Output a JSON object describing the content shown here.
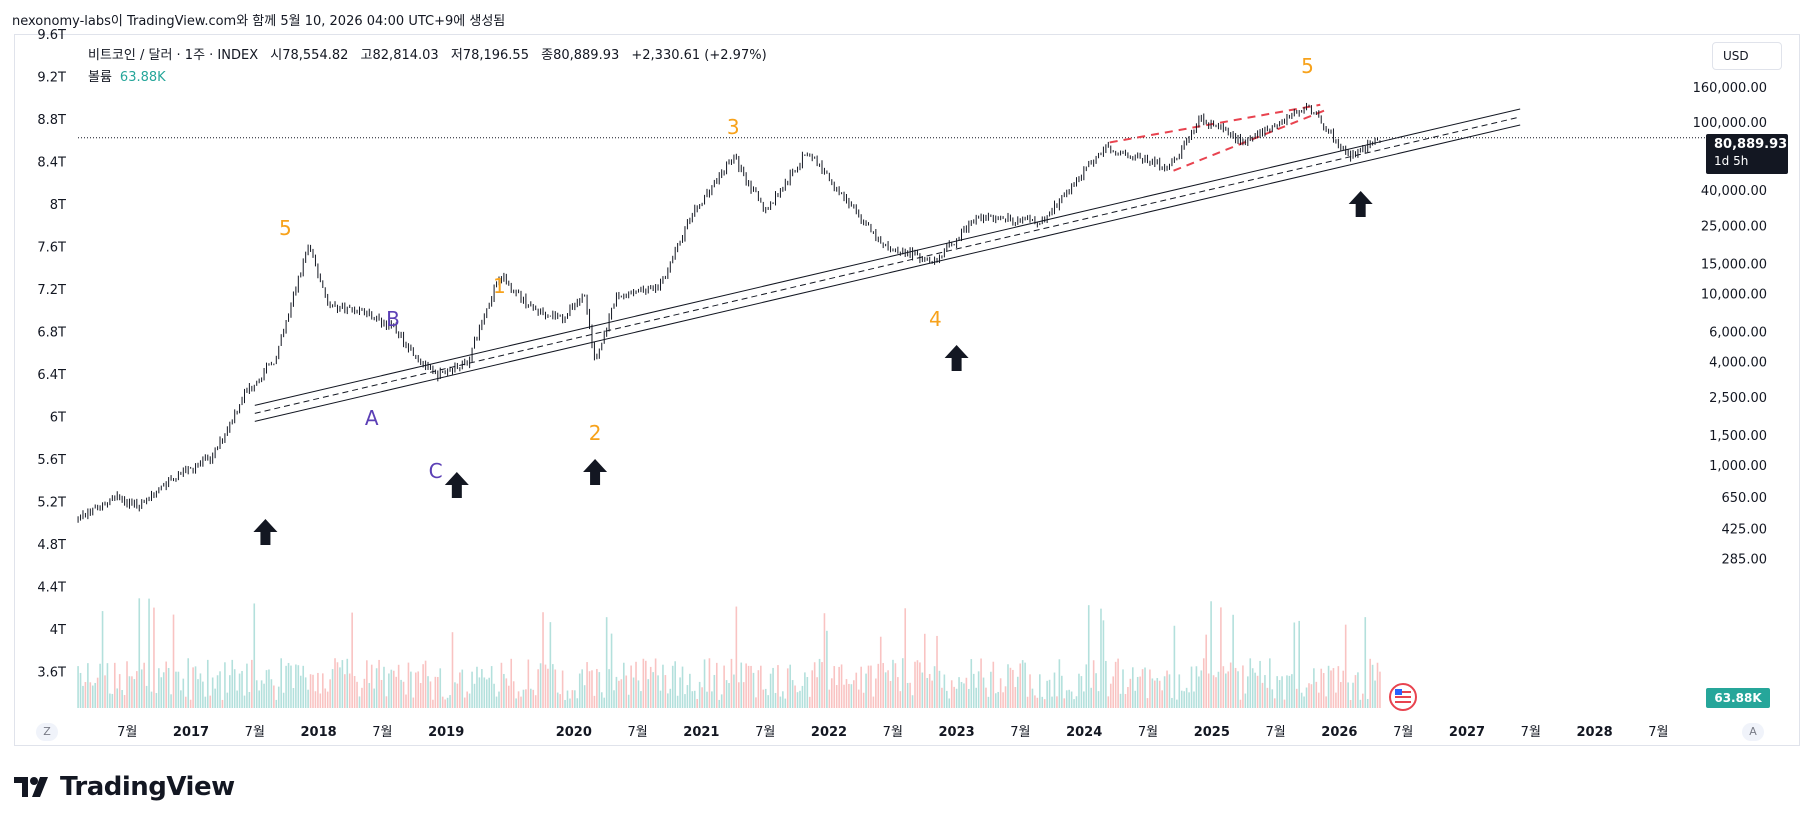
{
  "header": {
    "caption": "nexonomy-labs이 TradingView.com와 함께 5월 10, 2026 04:00 UTC+9에 생성됨"
  },
  "legend": {
    "symbol": "비트코인 / 달러 · 1주 · INDEX",
    "open_label": "시",
    "open": "78,554.82",
    "high_label": "고",
    "high": "82,814.03",
    "low_label": "저",
    "low": "78,196.55",
    "close_label": "종",
    "close": "80,889.93",
    "change": "+2,330.61 (+2.97%)",
    "volume_label": "볼륨",
    "volume": "63.88K"
  },
  "currency_button": "USD",
  "price_tag": {
    "price": "80,889.93",
    "countdown": "1d 5h"
  },
  "volume_tag": "63.88K",
  "scale_buttons": {
    "left": "Z",
    "right": "A"
  },
  "brand": {
    "name": "TradingView"
  },
  "colors": {
    "up": "#26a69a",
    "down": "#ef5350",
    "wave_orange": "#f7a21b",
    "wave_purple": "#5b3fb5",
    "channel_red": "#e8434f",
    "candle": "#131722"
  },
  "chart_data": {
    "type": "candlestick",
    "symbol": "비트코인 / 달러",
    "interval": "1주",
    "y_scale": "log",
    "right_axis_ticks": [
      160000,
      100000,
      40000,
      25000,
      15000,
      10000,
      6000,
      4000,
      2500,
      1500,
      1000,
      650,
      425,
      285
    ],
    "right_axis_labels": [
      "160,000.00",
      "100,000.00",
      "40,000.00",
      "25,000.00",
      "15,000.00",
      "10,000.00",
      "6,000.00",
      "4,000.00",
      "2,500.00",
      "1,500.00",
      "1,000.00",
      "650.00",
      "425.00",
      "285.00"
    ],
    "left_axis_labels": [
      "9.6T",
      "9.2T",
      "8.8T",
      "8.4T",
      "8T",
      "7.6T",
      "7.2T",
      "6.8T",
      "6.4T",
      "6T",
      "5.6T",
      "5.2T",
      "4.8T",
      "4.4T",
      "4T",
      "3.6T"
    ],
    "x_axis_labels": [
      "7월",
      "2017",
      "7월",
      "2018",
      "7월",
      "2019",
      "2020",
      "7월",
      "2021",
      "7월",
      "2022",
      "7월",
      "2023",
      "7월",
      "2024",
      "7월",
      "2025",
      "7월",
      "2026",
      "7월",
      "2027",
      "7월",
      "2028",
      "7월"
    ],
    "x_axis_dates": [
      "2016-07",
      "2017-01",
      "2017-07",
      "2018-01",
      "2018-07",
      "2019-01",
      "2020-01",
      "2020-07",
      "2021-01",
      "2021-07",
      "2022-01",
      "2022-07",
      "2023-01",
      "2023-07",
      "2024-01",
      "2024-07",
      "2025-01",
      "2025-07",
      "2026-01",
      "2026-07",
      "2027-01",
      "2027-07",
      "2028-01",
      "2028-07"
    ],
    "price_path": [
      [
        "2016-01",
        430
      ],
      [
        "2016-06",
        650
      ],
      [
        "2016-08",
        580
      ],
      [
        "2016-12",
        900
      ],
      [
        "2017-03",
        1100
      ],
      [
        "2017-06",
        2600
      ],
      [
        "2017-09",
        4200
      ],
      [
        "2017-12",
        19000
      ],
      [
        "2018-02",
        8500
      ],
      [
        "2018-05",
        8000
      ],
      [
        "2018-08",
        6300
      ],
      [
        "2018-11",
        3800
      ],
      [
        "2018-12",
        3300
      ],
      [
        "2019-03",
        4000
      ],
      [
        "2019-06",
        13000
      ],
      [
        "2019-09",
        8200
      ],
      [
        "2019-12",
        7200
      ],
      [
        "2020-02",
        10000
      ],
      [
        "2020-03",
        3900
      ],
      [
        "2020-05",
        9500
      ],
      [
        "2020-09",
        10800
      ],
      [
        "2020-12",
        28000
      ],
      [
        "2021-04",
        63000
      ],
      [
        "2021-07",
        30000
      ],
      [
        "2021-11",
        68000
      ],
      [
        "2022-06",
        19000
      ],
      [
        "2022-11",
        15500
      ],
      [
        "2023-03",
        28000
      ],
      [
        "2023-09",
        26000
      ],
      [
        "2024-03",
        72000
      ],
      [
        "2024-09",
        54000
      ],
      [
        "2024-12",
        106000
      ],
      [
        "2025-04",
        76000
      ],
      [
        "2025-10",
        124000
      ],
      [
        "2026-02",
        62000
      ],
      [
        "2026-05",
        80889.93
      ]
    ],
    "last_price": 80889.93,
    "trendline": [
      [
        "2017-07",
        2000
      ],
      [
        "2027-06",
        107000
      ]
    ],
    "wave_labels": [
      {
        "text": "5",
        "date": "2017-11",
        "color": "orange"
      },
      {
        "text": "A",
        "date": "2018-06",
        "color": "purple"
      },
      {
        "text": "B",
        "date": "2018-08",
        "color": "purple"
      },
      {
        "text": "C",
        "date": "2018-12",
        "color": "purple"
      },
      {
        "text": "1",
        "date": "2019-06",
        "color": "orange"
      },
      {
        "text": "2",
        "date": "2020-03",
        "color": "orange"
      },
      {
        "text": "3",
        "date": "2021-04",
        "color": "orange"
      },
      {
        "text": "4",
        "date": "2022-11",
        "color": "orange"
      },
      {
        "text": "5",
        "date": "2025-10",
        "color": "orange"
      }
    ],
    "arrow_dates": [
      "2017-08",
      "2019-02",
      "2020-03",
      "2023-01",
      "2026-03"
    ]
  }
}
